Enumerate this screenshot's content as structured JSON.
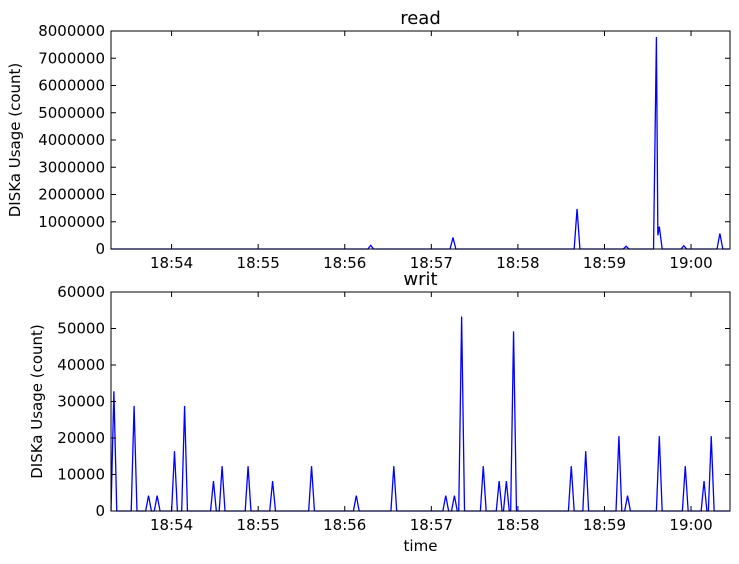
{
  "chart_data": [
    {
      "type": "line",
      "title": "read",
      "xlabel": "",
      "ylabel": "DISKa Usage (count)",
      "ylim": [
        0,
        8000000
      ],
      "xlim": [
        "18:53:18",
        "19:00:27"
      ],
      "grid": false,
      "line_color": "#0000ff",
      "x_ticks": [
        "18:54",
        "18:55",
        "18:56",
        "18:57",
        "18:58",
        "18:59",
        "19:00"
      ],
      "y_ticks": [
        "0",
        "1000000",
        "2000000",
        "3000000",
        "4000000",
        "5000000",
        "6000000",
        "7000000",
        "8000000"
      ],
      "series": [
        {
          "points": [
            [
              "18:53:18",
              0
            ],
            [
              "18:56:16",
              0
            ],
            [
              "18:56:18",
              130000
            ],
            [
              "18:56:20",
              0
            ],
            [
              "18:57:13",
              0
            ],
            [
              "18:57:15",
              420000
            ],
            [
              "18:57:17",
              0
            ],
            [
              "18:58:39",
              0
            ],
            [
              "18:58:41",
              1470000
            ],
            [
              "18:58:43",
              0
            ],
            [
              "18:59:13",
              0
            ],
            [
              "18:59:15",
              100000
            ],
            [
              "18:59:17",
              0
            ],
            [
              "18:59:34",
              0
            ],
            [
              "18:59:36",
              7780000
            ],
            [
              "18:59:37",
              500000
            ],
            [
              "18:59:38",
              820000
            ],
            [
              "18:59:40",
              0
            ],
            [
              "18:59:53",
              0
            ],
            [
              "18:59:55",
              120000
            ],
            [
              "18:59:57",
              0
            ],
            [
              "19:00:18",
              0
            ],
            [
              "19:00:20",
              570000
            ],
            [
              "19:00:22",
              0
            ],
            [
              "19:00:27",
              0
            ]
          ]
        }
      ]
    },
    {
      "type": "line",
      "title": "writ",
      "xlabel": "time",
      "ylabel": "DISKa Usage (count)",
      "ylim": [
        0,
        60000
      ],
      "xlim": [
        "18:53:18",
        "19:00:27"
      ],
      "grid": false,
      "line_color": "#0000ff",
      "x_ticks": [
        "18:54",
        "18:55",
        "18:56",
        "18:57",
        "18:58",
        "18:59",
        "19:00"
      ],
      "y_ticks": [
        "0",
        "10000",
        "20000",
        "30000",
        "40000",
        "50000",
        "60000"
      ],
      "series": [
        {
          "points": [
            [
              "18:53:18",
              0
            ],
            [
              "18:53:20",
              32800
            ],
            [
              "18:53:22",
              0
            ],
            [
              "18:53:32",
              0
            ],
            [
              "18:53:34",
              28800
            ],
            [
              "18:53:36",
              0
            ],
            [
              "18:53:42",
              0
            ],
            [
              "18:53:44",
              4200
            ],
            [
              "18:53:46",
              0
            ],
            [
              "18:53:48",
              0
            ],
            [
              "18:53:50",
              4200
            ],
            [
              "18:53:52",
              0
            ],
            [
              "18:54:00",
              0
            ],
            [
              "18:54:02",
              16400
            ],
            [
              "18:54:04",
              0
            ],
            [
              "18:54:07",
              0
            ],
            [
              "18:54:09",
              28800
            ],
            [
              "18:54:11",
              0
            ],
            [
              "18:54:27",
              0
            ],
            [
              "18:54:29",
              8200
            ],
            [
              "18:54:31",
              0
            ],
            [
              "18:54:33",
              0
            ],
            [
              "18:54:35",
              12300
            ],
            [
              "18:54:37",
              0
            ],
            [
              "18:54:51",
              0
            ],
            [
              "18:54:53",
              12300
            ],
            [
              "18:54:55",
              0
            ],
            [
              "18:55:08",
              0
            ],
            [
              "18:55:10",
              8200
            ],
            [
              "18:55:12",
              0
            ],
            [
              "18:55:35",
              0
            ],
            [
              "18:55:37",
              12300
            ],
            [
              "18:55:39",
              0
            ],
            [
              "18:56:06",
              0
            ],
            [
              "18:56:08",
              4200
            ],
            [
              "18:56:10",
              0
            ],
            [
              "18:56:32",
              0
            ],
            [
              "18:56:34",
              12300
            ],
            [
              "18:56:36",
              0
            ],
            [
              "18:57:08",
              0
            ],
            [
              "18:57:10",
              4200
            ],
            [
              "18:57:12",
              0
            ],
            [
              "18:57:14",
              0
            ],
            [
              "18:57:16",
              4200
            ],
            [
              "18:57:18",
              0
            ],
            [
              "18:57:19",
              0
            ],
            [
              "18:57:21",
              53300
            ],
            [
              "18:57:23",
              0
            ],
            [
              "18:57:34",
              0
            ],
            [
              "18:57:36",
              12300
            ],
            [
              "18:57:38",
              0
            ],
            [
              "18:57:45",
              0
            ],
            [
              "18:57:47",
              8200
            ],
            [
              "18:57:49",
              0
            ],
            [
              "18:57:50",
              0
            ],
            [
              "18:57:52",
              8200
            ],
            [
              "18:57:54",
              0
            ],
            [
              "18:57:55",
              0
            ],
            [
              "18:57:57",
              49200
            ],
            [
              "18:57:59",
              0
            ],
            [
              "18:58:35",
              0
            ],
            [
              "18:58:37",
              12300
            ],
            [
              "18:58:39",
              0
            ],
            [
              "18:58:45",
              0
            ],
            [
              "18:58:47",
              16400
            ],
            [
              "18:58:49",
              0
            ],
            [
              "18:59:08",
              0
            ],
            [
              "18:59:10",
              20500
            ],
            [
              "18:59:12",
              0
            ],
            [
              "18:59:14",
              0
            ],
            [
              "18:59:16",
              4200
            ],
            [
              "18:59:18",
              0
            ],
            [
              "18:59:36",
              0
            ],
            [
              "18:59:38",
              20500
            ],
            [
              "18:59:40",
              0
            ],
            [
              "18:59:54",
              0
            ],
            [
              "18:59:56",
              12300
            ],
            [
              "18:59:58",
              0
            ],
            [
              "19:00:07",
              0
            ],
            [
              "19:00:09",
              8200
            ],
            [
              "19:00:11",
              0
            ],
            [
              "19:00:12",
              0
            ],
            [
              "19:00:14",
              20500
            ],
            [
              "19:00:16",
              0
            ],
            [
              "19:00:27",
              0
            ]
          ]
        }
      ]
    }
  ]
}
